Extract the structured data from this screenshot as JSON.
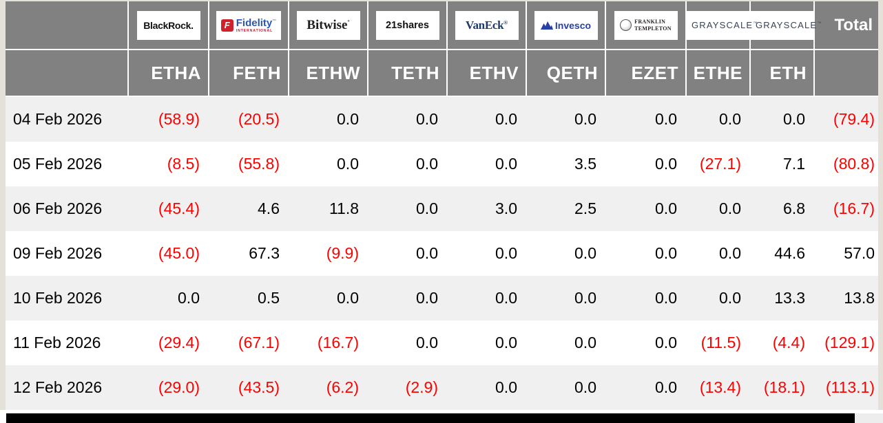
{
  "colors": {
    "header_bg": "#818181",
    "header_text": "#ffffff",
    "row_stripe": "#f0f0f0",
    "row_plain": "#ffffff",
    "negative_value": "#ff0000",
    "positive_value": "#000000",
    "page_border": "#e4e1d9",
    "bottom_bar": "#000000"
  },
  "table": {
    "total_label": "Total",
    "providers": [
      {
        "name": "BlackRock",
        "ticker": "ETHA",
        "logo": {
          "kind": "blackrock",
          "text": "BlackRock."
        }
      },
      {
        "name": "Fidelity International",
        "ticker": "FETH",
        "logo": {
          "kind": "fidelity",
          "mark": "F",
          "text": "Fidelity",
          "tm": "™",
          "sub": "INTERNATIONAL"
        }
      },
      {
        "name": "Bitwise",
        "ticker": "ETHW",
        "logo": {
          "kind": "bitwise",
          "text": "Bitwise",
          "sup": "°"
        }
      },
      {
        "name": "21shares",
        "ticker": "TETH",
        "logo": {
          "kind": "s21",
          "text": "21shares"
        }
      },
      {
        "name": "VanEck",
        "ticker": "ETHV",
        "logo": {
          "kind": "vaneck",
          "text": "VanEck",
          "sup": "®"
        }
      },
      {
        "name": "Invesco",
        "ticker": "QETH",
        "logo": {
          "kind": "invesco",
          "text": "Invesco"
        }
      },
      {
        "name": "Franklin Templeton",
        "ticker": "EZET",
        "logo": {
          "kind": "franklin",
          "line1": "FRANKLIN",
          "line2": "TEMPLETON"
        }
      },
      {
        "name": "Grayscale",
        "ticker": "ETHE",
        "logo": {
          "kind": "grayscale",
          "text": "GRAYSCALE",
          "tm": "™"
        }
      },
      {
        "name": "Grayscale",
        "ticker": "ETH",
        "logo": {
          "kind": "grayscale",
          "text": "GRAYSCALE",
          "tm": "™"
        }
      }
    ],
    "rows": [
      {
        "date": "04 Feb 2026",
        "values": [
          "(58.9)",
          "(20.5)",
          "0.0",
          "0.0",
          "0.0",
          "0.0",
          "0.0",
          "0.0",
          "0.0",
          "(79.4)"
        ]
      },
      {
        "date": "05 Feb 2026",
        "values": [
          "(8.5)",
          "(55.8)",
          "0.0",
          "0.0",
          "0.0",
          "3.5",
          "0.0",
          "(27.1)",
          "7.1",
          "(80.8)"
        ]
      },
      {
        "date": "06 Feb 2026",
        "values": [
          "(45.4)",
          "4.6",
          "11.8",
          "0.0",
          "3.0",
          "2.5",
          "0.0",
          "0.0",
          "6.8",
          "(16.7)"
        ]
      },
      {
        "date": "09 Feb 2026",
        "values": [
          "(45.0)",
          "67.3",
          "(9.9)",
          "0.0",
          "0.0",
          "0.0",
          "0.0",
          "0.0",
          "44.6",
          "57.0"
        ]
      },
      {
        "date": "10 Feb 2026",
        "values": [
          "0.0",
          "0.5",
          "0.0",
          "0.0",
          "0.0",
          "0.0",
          "0.0",
          "0.0",
          "13.3",
          "13.8"
        ]
      },
      {
        "date": "11 Feb 2026",
        "values": [
          "(29.4)",
          "(67.1)",
          "(16.7)",
          "0.0",
          "0.0",
          "0.0",
          "0.0",
          "(11.5)",
          "(4.4)",
          "(129.1)"
        ]
      },
      {
        "date": "12 Feb 2026",
        "values": [
          "(29.0)",
          "(43.5)",
          "(6.2)",
          "(2.9)",
          "0.0",
          "0.0",
          "0.0",
          "(13.4)",
          "(18.1)",
          "(113.1)"
        ]
      }
    ]
  },
  "chart_data": {
    "type": "table",
    "columns": [
      "ETHA (BlackRock)",
      "FETH (Fidelity)",
      "ETHW (Bitwise)",
      "TETH (21shares)",
      "ETHV (VanEck)",
      "QETH (Invesco)",
      "EZET (Franklin Templeton)",
      "ETHE (Grayscale)",
      "ETH (Grayscale)",
      "Total"
    ],
    "row_label": "date",
    "rows": [
      {
        "date": "04 Feb 2026",
        "values": [
          -58.9,
          -20.5,
          0.0,
          0.0,
          0.0,
          0.0,
          0.0,
          0.0,
          0.0,
          -79.4
        ]
      },
      {
        "date": "05 Feb 2026",
        "values": [
          -8.5,
          -55.8,
          0.0,
          0.0,
          0.0,
          3.5,
          0.0,
          -27.1,
          7.1,
          -80.8
        ]
      },
      {
        "date": "06 Feb 2026",
        "values": [
          -45.4,
          4.6,
          11.8,
          0.0,
          3.0,
          2.5,
          0.0,
          0.0,
          6.8,
          -16.7
        ]
      },
      {
        "date": "09 Feb 2026",
        "values": [
          -45.0,
          67.3,
          -9.9,
          0.0,
          0.0,
          0.0,
          0.0,
          0.0,
          44.6,
          57.0
        ]
      },
      {
        "date": "10 Feb 2026",
        "values": [
          0.0,
          0.5,
          0.0,
          0.0,
          0.0,
          0.0,
          0.0,
          0.0,
          13.3,
          13.8
        ]
      },
      {
        "date": "11 Feb 2026",
        "values": [
          -29.4,
          -67.1,
          -16.7,
          0.0,
          0.0,
          0.0,
          0.0,
          -11.5,
          -4.4,
          -129.1
        ]
      },
      {
        "date": "12 Feb 2026",
        "values": [
          -29.0,
          -43.5,
          -6.2,
          -2.9,
          0.0,
          0.0,
          0.0,
          -13.4,
          -18.1,
          -113.1
        ]
      }
    ],
    "notes": "Negative values rendered in red within parentheses"
  }
}
